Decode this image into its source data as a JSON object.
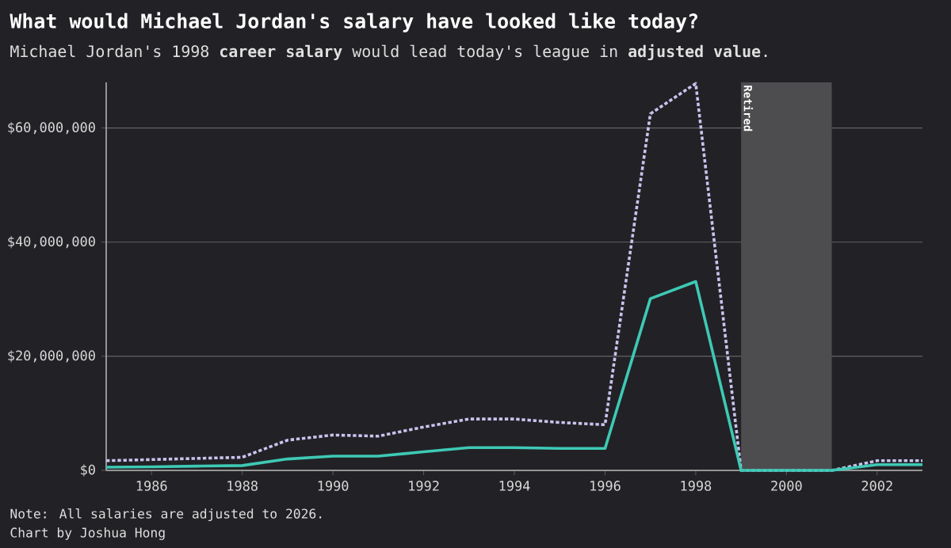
{
  "chart_data": {
    "type": "line",
    "title": "What would Michael Jordan's salary have looked like today?",
    "subtitle": "Michael Jordan's 1998 **career salary** would lead today's league in **adjusted value**.",
    "x": [
      1985,
      1986,
      1987,
      1988,
      1989,
      1990,
      1991,
      1992,
      1993,
      1994,
      1995,
      1996,
      1997,
      1998,
      1999,
      2000,
      2001,
      2002,
      2003
    ],
    "series": [
      {
        "color": "#3ec9b5",
        "line_style": "solid",
        "values": [
          550000,
          630000,
          750000,
          850000,
          2000000,
          2500000,
          2500000,
          3250000,
          4000000,
          4000000,
          3850000,
          3850000,
          30100000,
          33100000,
          0,
          0,
          0,
          1000000,
          1000000
        ]
      },
      {
        "color": "#c9c3ee",
        "line_style": "dotted",
        "values": [
          1700000,
          1900000,
          2100000,
          2300000,
          5300000,
          6200000,
          6000000,
          7600000,
          9000000,
          9000000,
          8400000,
          8000000,
          62500000,
          67800000,
          0,
          0,
          0,
          1700000,
          1700000
        ]
      }
    ],
    "xlim": [
      1985,
      2003
    ],
    "ylim": [
      0,
      68000000
    ],
    "xticks": [
      1986,
      1988,
      1990,
      1992,
      1994,
      1996,
      1998,
      2000,
      2002
    ],
    "yticks": [
      {
        "value": 0,
        "label": "$0"
      },
      {
        "value": 20000000,
        "label": "$20,000,000"
      },
      {
        "value": 40000000,
        "label": "$40,000,000"
      },
      {
        "value": 60000000,
        "label": "$60,000,000"
      }
    ],
    "bands": [
      {
        "axis": "x",
        "from": 1999,
        "to": 2001,
        "label": "Retired",
        "color": "#4d4d50"
      }
    ],
    "grid": "y",
    "annotations": [
      "Note: All salaries are adjusted to 2026.",
      "Chart by Joshua Hong"
    ]
  }
}
